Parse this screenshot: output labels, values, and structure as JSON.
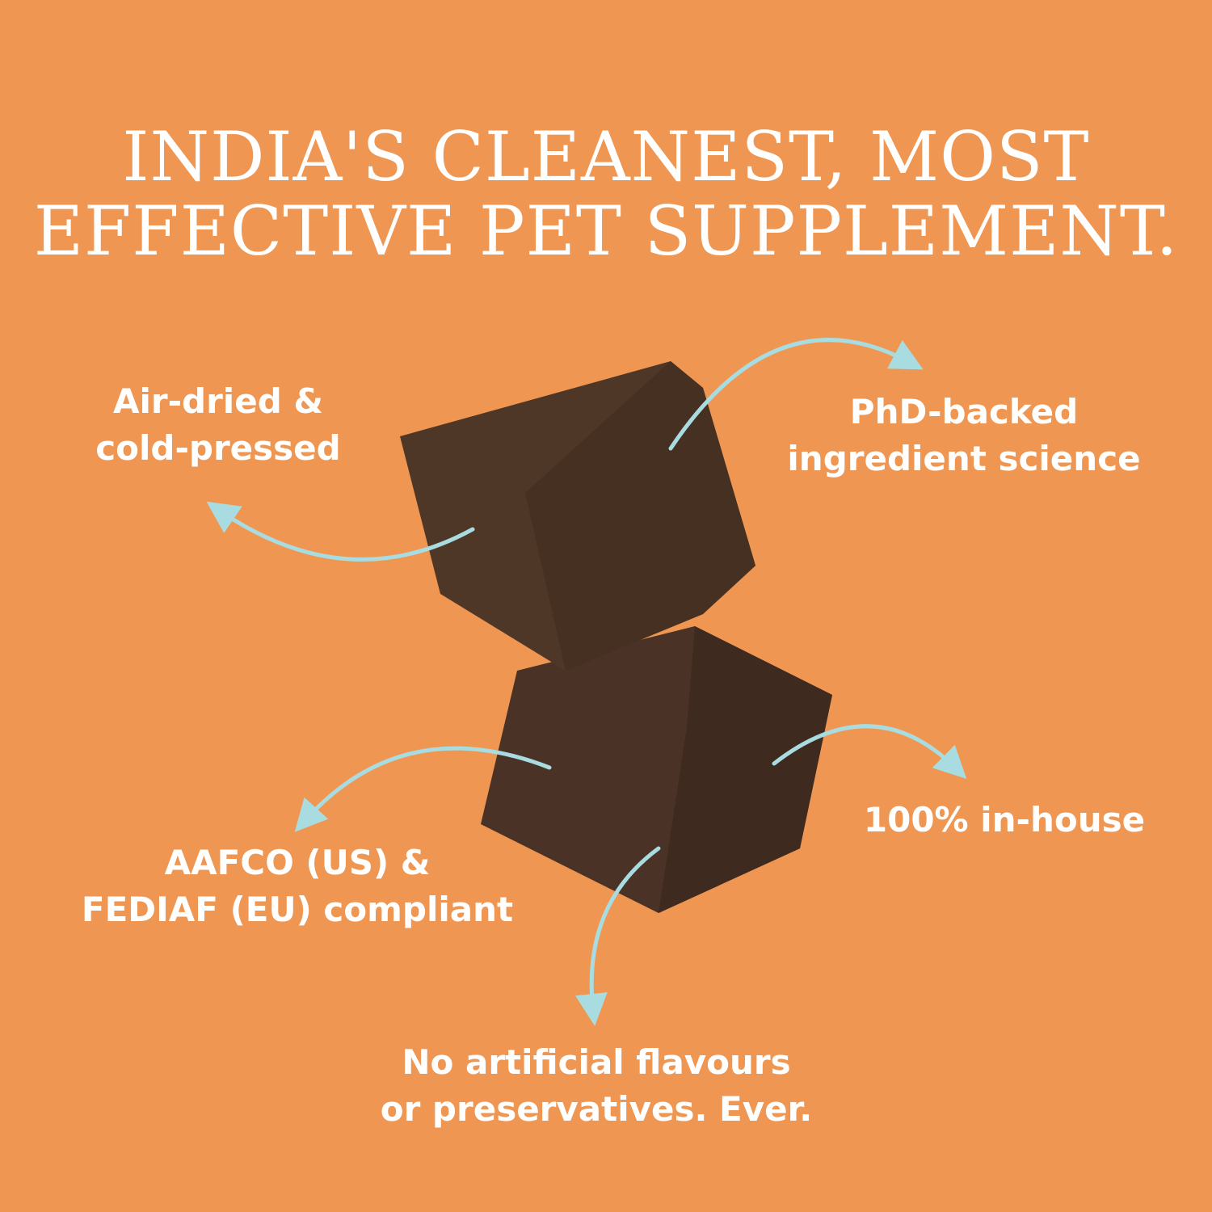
{
  "headline": {
    "line1": "INDIA'S CLEANEST, MOST",
    "line2": "EFFECTIVE PET SUPPLEMENT."
  },
  "features": [
    {
      "line1": "Air-dried &",
      "line2": "cold-pressed"
    },
    {
      "line1": "PhD-backed",
      "line2": "ingredient science"
    },
    {
      "line1": "AAFCO (US) &",
      "line2": "FEDIAF (EU) compliant"
    },
    {
      "line1": "100% in-house"
    },
    {
      "line1": "No artificial flavours",
      "line2": "or preservatives. Ever."
    }
  ],
  "colors": {
    "background": "#EF9752",
    "text": "#FFFFFF",
    "arrow": "#A8DCE0",
    "product": "#4A3326"
  }
}
